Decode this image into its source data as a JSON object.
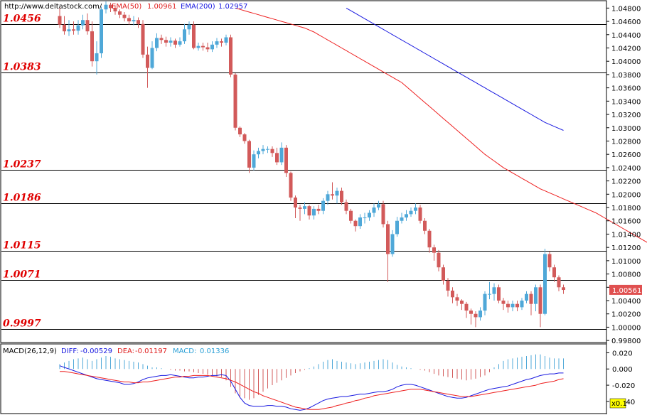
{
  "header": {
    "source": "http://www.deltastock.com/",
    "ema50_label": "EMA(50)",
    "ema50_value": "1.00961",
    "ema200_label": "EMA(200)",
    "ema200_value": "1.02957"
  },
  "macd_header": {
    "title": "MACD(26,12,9)",
    "diff_label": "DIFF:",
    "diff_value": "-0.00529",
    "dea_label": "DEA:",
    "dea_value": "-0.01197",
    "macd_label": "MACD:",
    "macd_value": "0.01336"
  },
  "price_tag": "1.00561",
  "scale_badge": "x0.1",
  "colors": {
    "bull": "#4fa8d8",
    "bear": "#d25a5a",
    "ema50": "#ee2020",
    "ema200": "#1818e0",
    "level_text": "#e00000",
    "price_tag_bg": "#e05050",
    "badge_bg": "#ffff00"
  },
  "chart_data": [
    {
      "type": "candlestick",
      "ylim": [
        0.9978,
        1.049
      ],
      "y_ticks": [
        "1.04800",
        "1.04600",
        "1.04400",
        "1.04200",
        "1.04000",
        "1.03800",
        "1.03600",
        "1.03400",
        "1.03200",
        "1.03000",
        "1.02800",
        "1.02600",
        "1.02400",
        "1.02200",
        "1.02000",
        "1.01800",
        "1.01600",
        "1.01400",
        "1.01200",
        "1.01000",
        "1.00800",
        "1.00600",
        "1.00400",
        "1.00200",
        "1.00000",
        "0.99800"
      ],
      "levels": [
        {
          "label": "1.0456",
          "value": 1.0456
        },
        {
          "label": "1.0383",
          "value": 1.0383
        },
        {
          "label": "1.0237",
          "value": 1.0237
        },
        {
          "label": "1.0186",
          "value": 1.0186
        },
        {
          "label": "1.0115",
          "value": 1.0115
        },
        {
          "label": "1.0071",
          "value": 1.0071
        },
        {
          "label": "0.9997",
          "value": 0.9997
        }
      ],
      "close_start": 1.0468,
      "closes": [
        1.0455,
        1.0445,
        1.0448,
        1.0446,
        1.0454,
        1.0462,
        1.0445,
        1.04,
        1.0412,
        1.0478,
        1.0485,
        1.048,
        1.0475,
        1.047,
        1.0465,
        1.046,
        1.0462,
        1.0456,
        1.041,
        1.039,
        1.042,
        1.0435,
        1.0432,
        1.0428,
        1.0431,
        1.0425,
        1.043,
        1.0448,
        1.0455,
        1.042,
        1.0423,
        1.0421,
        1.0418,
        1.0425,
        1.043,
        1.0428,
        1.0436,
        1.038,
        1.03,
        1.029,
        1.028,
        1.024,
        1.026,
        1.0265,
        1.0268,
        1.0268,
        1.0262,
        1.0248,
        1.027,
        1.0232,
        1.0195,
        1.018,
        1.0178,
        1.0182,
        1.0168,
        1.0178,
        1.0175,
        1.019,
        1.02,
        1.0198,
        1.0205,
        1.0188,
        1.0175,
        1.016,
        1.0152,
        1.0165,
        1.0165,
        1.0172,
        1.018,
        1.0185,
        1.0155,
        1.011,
        1.014,
        1.016,
        1.0165,
        1.017,
        1.0175,
        1.018,
        1.016,
        1.0145,
        1.012,
        1.0112,
        1.009,
        1.007,
        1.0055,
        1.0045,
        1.004,
        1.0035,
        1.0025,
        1.002,
        1.0015,
        1.0025,
        1.005,
        1.005,
        1.006,
        1.004,
        1.0035,
        1.003,
        1.0035,
        1.003,
        1.004,
        1.005,
        1.0035,
        1.006,
        1.002,
        1.011,
        1.009,
        1.0075,
        1.006,
        1.0056
      ],
      "highs": [
        1.0482,
        1.0468,
        1.0462,
        1.046,
        1.0462,
        1.047,
        1.0472,
        1.046,
        1.043,
        1.0482,
        1.049,
        1.0488,
        1.0484,
        1.0478,
        1.0474,
        1.047,
        1.0468,
        1.0466,
        1.0462,
        1.0422,
        1.043,
        1.0442,
        1.044,
        1.0437,
        1.0436,
        1.0434,
        1.0436,
        1.0456,
        1.046,
        1.046,
        1.0428,
        1.0428,
        1.0428,
        1.043,
        1.0435,
        1.0434,
        1.044,
        1.044,
        1.0382,
        1.0302,
        1.0292,
        1.0282,
        1.0266,
        1.027,
        1.0274,
        1.0272,
        1.0272,
        1.027,
        1.0278,
        1.0274,
        1.0234,
        1.0198,
        1.0184,
        1.0188,
        1.0184,
        1.0182,
        1.0184,
        1.0194,
        1.0205,
        1.0218,
        1.021,
        1.021,
        1.0192,
        1.0178,
        1.0162,
        1.017,
        1.0172,
        1.0176,
        1.0186,
        1.019,
        1.019,
        1.016,
        1.0146,
        1.0166,
        1.0172,
        1.0176,
        1.018,
        1.0186,
        1.0184,
        1.0164,
        1.0148,
        1.0124,
        1.0116,
        1.0094,
        1.0074,
        1.006,
        1.005,
        1.0042,
        1.0038,
        1.0028,
        1.0024,
        1.003,
        1.0054,
        1.0068,
        1.0066,
        1.0064,
        1.0044,
        1.004,
        1.004,
        1.004,
        1.0044,
        1.0054,
        1.0054,
        1.0064,
        1.0064,
        1.0118,
        1.0114,
        1.0094,
        1.0078,
        1.0064
      ],
      "lows": [
        1.045,
        1.044,
        1.0438,
        1.044,
        1.044,
        1.0448,
        1.044,
        1.0392,
        1.038,
        1.0405,
        1.0472,
        1.0474,
        1.047,
        1.0465,
        1.046,
        1.0455,
        1.0454,
        1.045,
        1.0405,
        1.036,
        1.0388,
        1.0415,
        1.0426,
        1.0422,
        1.0422,
        1.042,
        1.0422,
        1.0426,
        1.044,
        1.0418,
        1.0416,
        1.0416,
        1.0414,
        1.0414,
        1.042,
        1.0422,
        1.0424,
        1.0376,
        1.0296,
        1.0286,
        1.0276,
        1.0232,
        1.0236,
        1.0254,
        1.026,
        1.0262,
        1.0256,
        1.0244,
        1.0244,
        1.0226,
        1.019,
        1.0164,
        1.016,
        1.017,
        1.0162,
        1.0162,
        1.017,
        1.017,
        1.0184,
        1.0192,
        1.0186,
        1.0184,
        1.017,
        1.0156,
        1.0144,
        1.0148,
        1.0156,
        1.016,
        1.0166,
        1.0176,
        1.015,
        1.0068,
        1.0106,
        1.0136,
        1.0156,
        1.016,
        1.0166,
        1.017,
        1.0156,
        1.014,
        1.0112,
        1.01,
        1.0084,
        1.0064,
        1.0046,
        1.0036,
        1.0032,
        1.0026,
        1.0014,
        1.0004,
        1.0,
        1.001,
        1.0018,
        1.0042,
        1.004,
        1.0036,
        1.0026,
        1.0022,
        1.0024,
        1.0024,
        1.0026,
        1.0036,
        1.0018,
        1.0024,
        1.0,
        1.0018,
        1.0084,
        1.0068,
        1.0054,
        1.005
      ],
      "ema50": [
        1.048,
        1.0478,
        1.0476,
        1.0474,
        1.0472,
        1.047,
        1.0468,
        1.0466,
        1.0464,
        1.0462,
        1.046,
        1.0458,
        1.0456,
        1.0454,
        1.0452,
        1.045,
        1.0447,
        1.0444,
        1.044,
        1.0436,
        1.0432,
        1.0428,
        1.0424,
        1.042,
        1.0416,
        1.0412,
        1.0408,
        1.0404,
        1.04,
        1.0396,
        1.0392,
        1.0388,
        1.0384,
        1.038,
        1.0376,
        1.0372,
        1.0368,
        1.0362,
        1.0356,
        1.035,
        1.0344,
        1.0338,
        1.0332,
        1.0326,
        1.032,
        1.0314,
        1.0308,
        1.0302,
        1.0296,
        1.029,
        1.0284,
        1.0278,
        1.0272,
        1.0266,
        1.026,
        1.0255,
        1.025,
        1.0245,
        1.024,
        1.0236,
        1.0232,
        1.0228,
        1.0224,
        1.022,
        1.0216,
        1.0212,
        1.0208,
        1.0205,
        1.0202,
        1.0199,
        1.0196,
        1.0193,
        1.019,
        1.0187,
        1.0184,
        1.0181,
        1.0178,
        1.0175,
        1.0172,
        1.0168,
        1.0164,
        1.016,
        1.0156,
        1.0152,
        1.0148,
        1.0144,
        1.014,
        1.0136,
        1.0132,
        1.0128,
        1.0124,
        1.012,
        1.0116,
        1.0112,
        1.0108,
        1.0105,
        1.0102,
        1.0099,
        1.0098,
        1.0098,
        1.0097,
        1.0097,
        1.0096
      ],
      "ema50_start": 38,
      "ema200": [
        1.048,
        1.0476,
        1.0472,
        1.0468,
        1.0464,
        1.046,
        1.0456,
        1.0452,
        1.0448,
        1.0444,
        1.044,
        1.0436,
        1.0432,
        1.0428,
        1.0424,
        1.042,
        1.0416,
        1.0412,
        1.0408,
        1.0404,
        1.04,
        1.0396,
        1.0392,
        1.0388,
        1.0384,
        1.038,
        1.0376,
        1.0372,
        1.0368,
        1.0364,
        1.036,
        1.0356,
        1.0352,
        1.0348,
        1.0344,
        1.034,
        1.0336,
        1.0332,
        1.0328,
        1.0324,
        1.032,
        1.0316,
        1.0312,
        1.0308,
        1.0305,
        1.0302,
        1.0299,
        1.0296
      ],
      "ema200_start": 62
    },
    {
      "type": "macd",
      "ylim": [
        -0.055,
        0.03
      ],
      "y_ticks": [
        "0.020",
        "0.000",
        "-0.020",
        "-0.040"
      ],
      "hist": [
        0.006,
        0.008,
        0.01,
        0.012,
        0.013,
        0.014,
        0.012,
        0.01,
        0.012,
        0.014,
        0.016,
        0.015,
        0.013,
        0.012,
        0.011,
        0.01,
        0.009,
        0.008,
        0.006,
        0.004,
        0.002,
        0.002,
        0.001,
        0.0,
        -0.001,
        -0.002,
        -0.002,
        -0.003,
        -0.003,
        -0.004,
        -0.005,
        -0.006,
        -0.007,
        -0.008,
        -0.009,
        -0.01,
        -0.014,
        -0.022,
        -0.03,
        -0.034,
        -0.036,
        -0.038,
        -0.036,
        -0.032,
        -0.028,
        -0.024,
        -0.02,
        -0.017,
        -0.014,
        -0.011,
        -0.008,
        -0.005,
        -0.003,
        -0.001,
        0.001,
        0.003,
        0.006,
        0.009,
        0.011,
        0.012,
        0.01,
        0.009,
        0.008,
        0.007,
        0.006,
        0.007,
        0.008,
        0.009,
        0.01,
        0.011,
        0.012,
        0.011,
        0.008,
        0.005,
        0.003,
        0.002,
        0.001,
        0.0,
        -0.001,
        -0.002,
        -0.004,
        -0.006,
        -0.008,
        -0.009,
        -0.01,
        -0.011,
        -0.012,
        -0.013,
        -0.014,
        -0.013,
        -0.012,
        -0.01,
        -0.008,
        -0.004,
        0.002,
        0.006,
        0.01,
        0.012,
        0.013,
        0.014,
        0.015,
        0.016,
        0.017,
        0.018,
        0.018,
        0.016,
        0.014,
        0.013,
        0.013,
        0.013
      ],
      "diff": [
        0.004,
        0.002,
        0.0,
        -0.002,
        -0.004,
        -0.006,
        -0.008,
        -0.01,
        -0.012,
        -0.013,
        -0.014,
        -0.015,
        -0.016,
        -0.017,
        -0.019,
        -0.019,
        -0.018,
        -0.016,
        -0.013,
        -0.011,
        -0.01,
        -0.009,
        -0.008,
        -0.008,
        -0.007,
        -0.008,
        -0.009,
        -0.01,
        -0.011,
        -0.011,
        -0.01,
        -0.01,
        -0.009,
        -0.008,
        -0.008,
        -0.007,
        -0.008,
        -0.015,
        -0.025,
        -0.035,
        -0.042,
        -0.045,
        -0.046,
        -0.046,
        -0.046,
        -0.045,
        -0.045,
        -0.046,
        -0.046,
        -0.047,
        -0.049,
        -0.05,
        -0.051,
        -0.05,
        -0.048,
        -0.045,
        -0.042,
        -0.039,
        -0.037,
        -0.036,
        -0.035,
        -0.034,
        -0.034,
        -0.033,
        -0.032,
        -0.031,
        -0.031,
        -0.03,
        -0.029,
        -0.028,
        -0.028,
        -0.027,
        -0.025,
        -0.022,
        -0.02,
        -0.019,
        -0.019,
        -0.02,
        -0.022,
        -0.024,
        -0.026,
        -0.028,
        -0.03,
        -0.032,
        -0.034,
        -0.035,
        -0.036,
        -0.036,
        -0.035,
        -0.033,
        -0.031,
        -0.029,
        -0.027,
        -0.025,
        -0.024,
        -0.023,
        -0.022,
        -0.021,
        -0.019,
        -0.017,
        -0.015,
        -0.013,
        -0.012,
        -0.01,
        -0.008,
        -0.007,
        -0.006,
        -0.006,
        -0.005,
        -0.005
      ],
      "dea": [
        -0.003,
        -0.003,
        -0.004,
        -0.005,
        -0.006,
        -0.007,
        -0.008,
        -0.009,
        -0.01,
        -0.011,
        -0.012,
        -0.013,
        -0.014,
        -0.015,
        -0.016,
        -0.016,
        -0.017,
        -0.017,
        -0.016,
        -0.016,
        -0.015,
        -0.014,
        -0.013,
        -0.012,
        -0.011,
        -0.01,
        -0.01,
        -0.009,
        -0.009,
        -0.008,
        -0.008,
        -0.008,
        -0.008,
        -0.009,
        -0.01,
        -0.011,
        -0.012,
        -0.014,
        -0.016,
        -0.019,
        -0.022,
        -0.025,
        -0.028,
        -0.03,
        -0.033,
        -0.035,
        -0.037,
        -0.039,
        -0.041,
        -0.043,
        -0.045,
        -0.047,
        -0.048,
        -0.049,
        -0.05,
        -0.05,
        -0.05,
        -0.049,
        -0.048,
        -0.047,
        -0.045,
        -0.044,
        -0.042,
        -0.041,
        -0.039,
        -0.038,
        -0.036,
        -0.035,
        -0.033,
        -0.032,
        -0.031,
        -0.03,
        -0.029,
        -0.028,
        -0.027,
        -0.026,
        -0.025,
        -0.025,
        -0.025,
        -0.026,
        -0.027,
        -0.028,
        -0.029,
        -0.03,
        -0.031,
        -0.032,
        -0.033,
        -0.034,
        -0.034,
        -0.034,
        -0.033,
        -0.032,
        -0.031,
        -0.03,
        -0.029,
        -0.028,
        -0.027,
        -0.026,
        -0.025,
        -0.024,
        -0.023,
        -0.022,
        -0.021,
        -0.02,
        -0.018,
        -0.017,
        -0.016,
        -0.015,
        -0.013,
        -0.012
      ]
    }
  ]
}
